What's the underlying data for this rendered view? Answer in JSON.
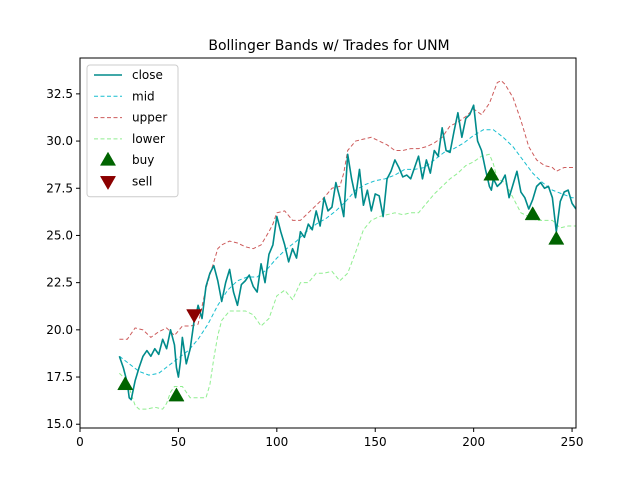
{
  "chart_data": {
    "type": "line",
    "title": "Bollinger Bands w/ Trades for UNM",
    "xlabel": "",
    "ylabel": "",
    "xlim": [
      0,
      252
    ],
    "ylim": [
      14.8,
      34.4
    ],
    "x_ticks": [
      0,
      50,
      100,
      150,
      200,
      250
    ],
    "x_tick_labels": [
      "0",
      "50",
      "100",
      "150",
      "200",
      "250"
    ],
    "y_ticks": [
      15.0,
      17.5,
      20.0,
      22.5,
      25.0,
      27.5,
      30.0,
      32.5
    ],
    "y_tick_labels": [
      "15.0",
      "17.5",
      "20.0",
      "22.5",
      "25.0",
      "27.5",
      "30.0",
      "32.5"
    ],
    "grid": false,
    "legend_position": "top-left",
    "series": [
      {
        "name": "close",
        "color": "#008b8b",
        "style": "solid",
        "x": [
          20,
          22,
          24,
          25,
          26,
          28,
          30,
          32,
          34,
          36,
          38,
          40,
          42,
          44,
          46,
          48,
          49,
          50,
          51,
          52,
          54,
          56,
          58,
          59,
          60,
          62,
          64,
          66,
          68,
          70,
          72,
          74,
          76,
          78,
          80,
          82,
          84,
          86,
          88,
          90,
          92,
          94,
          96,
          98,
          100,
          102,
          104,
          106,
          108,
          110,
          112,
          114,
          116,
          118,
          120,
          122,
          124,
          126,
          128,
          130,
          132,
          134,
          136,
          138,
          140,
          142,
          144,
          146,
          148,
          150,
          152,
          154,
          156,
          158,
          160,
          162,
          164,
          166,
          168,
          170,
          172,
          174,
          176,
          178,
          180,
          182,
          184,
          186,
          188,
          190,
          192,
          194,
          196,
          198,
          200,
          202,
          204,
          206,
          208,
          209,
          210,
          212,
          214,
          216,
          218,
          220,
          222,
          224,
          226,
          228,
          230,
          232,
          234,
          236,
          238,
          240,
          242,
          244,
          246,
          248,
          250,
          252
        ],
        "y": [
          18.6,
          18.0,
          17.2,
          16.4,
          16.3,
          17.3,
          18.0,
          18.6,
          18.9,
          18.6,
          19.0,
          18.7,
          19.5,
          19.0,
          20.0,
          19.2,
          18.0,
          17.5,
          18.3,
          19.6,
          18.2,
          19.0,
          20.5,
          20.8,
          21.3,
          20.6,
          22.3,
          23.0,
          23.4,
          22.6,
          21.5,
          22.5,
          23.2,
          22.0,
          21.3,
          22.4,
          22.6,
          22.9,
          22.3,
          22.0,
          23.5,
          22.5,
          24.0,
          24.5,
          26.0,
          25.2,
          24.5,
          23.6,
          24.3,
          23.8,
          25.2,
          24.9,
          25.6,
          25.3,
          26.3,
          25.5,
          27.0,
          26.3,
          26.5,
          27.8,
          27.0,
          26.0,
          29.3,
          28.0,
          27.0,
          28.5,
          26.6,
          27.4,
          26.3,
          27.2,
          27.1,
          26.0,
          28.0,
          28.4,
          29.0,
          28.6,
          28.1,
          28.2,
          28.0,
          28.6,
          29.2,
          28.0,
          29.0,
          28.3,
          29.5,
          29.2,
          30.7,
          29.5,
          29.4,
          30.5,
          31.5,
          30.2,
          31.2,
          31.4,
          31.9,
          30.0,
          29.5,
          28.5,
          27.6,
          27.4,
          28.0,
          27.6,
          27.8,
          28.2,
          27.0,
          27.7,
          28.4,
          27.3,
          27.0,
          26.4,
          26.9,
          27.6,
          27.8,
          27.5,
          27.6,
          27.0,
          25.2,
          26.8,
          27.3,
          27.4,
          26.7,
          26.4
        ]
      },
      {
        "name": "mid",
        "color": "#17becf",
        "style": "dashed",
        "x": [
          20,
          25,
          30,
          35,
          40,
          45,
          50,
          55,
          60,
          65,
          70,
          75,
          80,
          85,
          90,
          95,
          100,
          105,
          110,
          115,
          120,
          125,
          130,
          135,
          140,
          145,
          150,
          155,
          160,
          165,
          170,
          175,
          180,
          185,
          190,
          195,
          200,
          205,
          210,
          215,
          220,
          225,
          230,
          235,
          240,
          245,
          250,
          252
        ],
        "y": [
          18.6,
          18.2,
          17.8,
          17.6,
          17.7,
          18.1,
          18.5,
          18.9,
          19.5,
          20.3,
          21.3,
          22.1,
          22.6,
          22.8,
          22.8,
          23.2,
          23.8,
          24.3,
          24.7,
          25.2,
          25.6,
          25.9,
          26.3,
          26.8,
          27.4,
          27.7,
          27.9,
          28.0,
          28.2,
          28.5,
          28.5,
          28.6,
          29.0,
          29.4,
          29.6,
          29.9,
          30.3,
          30.6,
          30.6,
          30.2,
          29.7,
          29.0,
          28.3,
          27.8,
          27.4,
          27.2,
          27.0,
          27.0
        ]
      },
      {
        "name": "upper",
        "color": "#cd5c5c",
        "style": "dashed",
        "x": [
          20,
          24,
          26,
          28,
          32,
          36,
          40,
          44,
          48,
          52,
          56,
          60,
          64,
          66,
          68,
          70,
          72,
          74,
          76,
          80,
          84,
          88,
          92,
          96,
          98,
          100,
          104,
          108,
          112,
          116,
          120,
          124,
          128,
          132,
          134,
          136,
          140,
          144,
          148,
          152,
          156,
          160,
          164,
          168,
          172,
          176,
          180,
          184,
          188,
          192,
          196,
          200,
          204,
          208,
          212,
          214,
          216,
          220,
          224,
          228,
          232,
          236,
          240,
          242,
          246,
          250,
          252
        ],
        "y": [
          19.5,
          19.5,
          19.8,
          20.1,
          20.0,
          19.6,
          19.9,
          20.1,
          19.7,
          20.2,
          20.2,
          20.3,
          22.2,
          22.9,
          23.6,
          24.3,
          24.5,
          24.6,
          24.7,
          24.6,
          24.4,
          24.3,
          24.5,
          25.2,
          25.6,
          26.2,
          26.3,
          25.8,
          25.8,
          26.2,
          26.6,
          27.0,
          27.5,
          27.6,
          28.3,
          29.5,
          30.0,
          30.1,
          30.2,
          30.0,
          29.8,
          29.5,
          29.5,
          29.6,
          29.6,
          29.7,
          29.9,
          30.2,
          30.8,
          31.0,
          31.3,
          31.7,
          31.4,
          32.0,
          33.1,
          33.2,
          33.0,
          32.3,
          31.1,
          29.7,
          29.0,
          28.7,
          28.6,
          28.4,
          28.6,
          28.6,
          28.6
        ]
      },
      {
        "name": "lower",
        "color": "#90ee90",
        "style": "dashed",
        "x": [
          20,
          24,
          26,
          28,
          30,
          34,
          38,
          42,
          44,
          46,
          48,
          52,
          56,
          60,
          64,
          66,
          68,
          70,
          72,
          76,
          80,
          84,
          88,
          92,
          96,
          100,
          104,
          108,
          112,
          116,
          120,
          124,
          128,
          132,
          136,
          140,
          144,
          148,
          152,
          156,
          160,
          164,
          168,
          172,
          176,
          180,
          184,
          188,
          192,
          196,
          200,
          204,
          208,
          210,
          212,
          216,
          220,
          224,
          228,
          232,
          236,
          240,
          244,
          248,
          252
        ],
        "y": [
          17.7,
          17.3,
          16.6,
          16.0,
          15.8,
          15.8,
          15.9,
          15.8,
          16.1,
          16.7,
          17.0,
          17.0,
          16.4,
          16.4,
          16.4,
          17.1,
          18.5,
          19.7,
          20.5,
          21.0,
          21.0,
          21.0,
          20.8,
          20.2,
          20.6,
          21.8,
          22.1,
          21.6,
          22.5,
          22.5,
          23.0,
          23.0,
          23.1,
          22.6,
          23.0,
          24.1,
          25.3,
          25.8,
          26.0,
          26.1,
          26.2,
          26.1,
          26.2,
          26.2,
          26.7,
          27.2,
          27.6,
          28.0,
          28.3,
          28.7,
          28.9,
          29.2,
          29.3,
          28.8,
          28.0,
          27.8,
          27.0,
          26.2,
          26.0,
          25.8,
          25.8,
          25.8,
          25.4,
          25.5,
          25.5
        ]
      }
    ],
    "markers": [
      {
        "name": "buy",
        "color": "#006400",
        "symbol": "triangle-up",
        "points": [
          [
            23,
            17.1
          ],
          [
            49,
            16.5
          ],
          [
            209,
            28.2
          ],
          [
            230,
            26.1
          ],
          [
            242,
            24.8
          ]
        ]
      },
      {
        "name": "sell",
        "color": "#8b0000",
        "symbol": "triangle-down",
        "points": [
          [
            58,
            20.8
          ]
        ]
      }
    ]
  }
}
